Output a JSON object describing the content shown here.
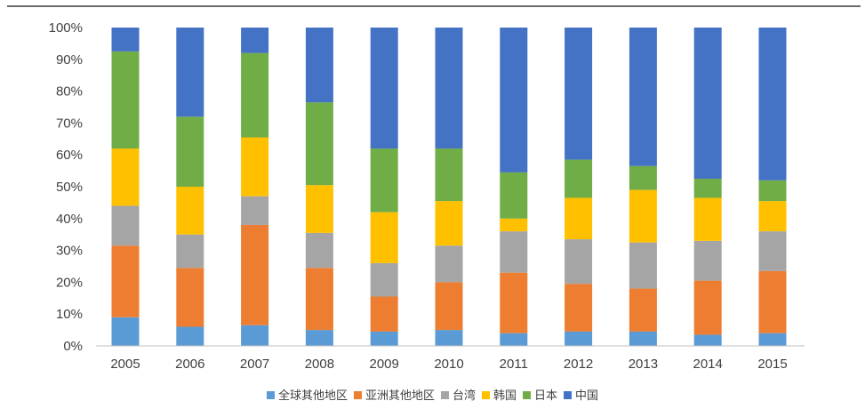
{
  "chart_data": {
    "type": "bar",
    "stacked": true,
    "categories": [
      "2005",
      "2006",
      "2007",
      "2008",
      "2009",
      "2010",
      "2011",
      "2012",
      "2013",
      "2014",
      "2015"
    ],
    "series": [
      {
        "name": "全球其他地区",
        "color": "#5b9bd5",
        "values": [
          9,
          6,
          6.5,
          5,
          4.5,
          5,
          4,
          4.5,
          4.5,
          3.5,
          4
        ]
      },
      {
        "name": "亚洲其他地区",
        "color": "#ed7d31",
        "values": [
          22.5,
          18.5,
          31.5,
          19.5,
          11,
          15,
          19,
          15,
          13.5,
          17,
          19.5
        ]
      },
      {
        "name": "台湾",
        "color": "#a5a5a5",
        "values": [
          12.5,
          10.5,
          9,
          11,
          10.5,
          11.5,
          13,
          14,
          14.5,
          12.5,
          12.5
        ]
      },
      {
        "name": "韩国",
        "color": "#ffc000",
        "values": [
          18,
          15,
          18.5,
          15,
          16,
          14,
          4,
          13,
          16.5,
          13.5,
          9.5
        ]
      },
      {
        "name": "日本",
        "color": "#70ad47",
        "values": [
          30.5,
          22,
          26.5,
          26,
          20,
          16.5,
          14.5,
          12,
          7.5,
          6,
          6.5
        ]
      },
      {
        "name": "中国",
        "color": "#4472c4",
        "values": [
          7.5,
          28,
          8,
          23.5,
          38,
          38,
          45.5,
          41.5,
          43.5,
          47.5,
          48
        ]
      }
    ],
    "ylim": [
      0,
      100
    ],
    "yticks": [
      "0%",
      "10%",
      "20%",
      "30%",
      "40%",
      "50%",
      "60%",
      "70%",
      "80%",
      "90%",
      "100%"
    ],
    "title": "",
    "xlabel": "",
    "ylabel": "",
    "legend_position": "bottom"
  }
}
